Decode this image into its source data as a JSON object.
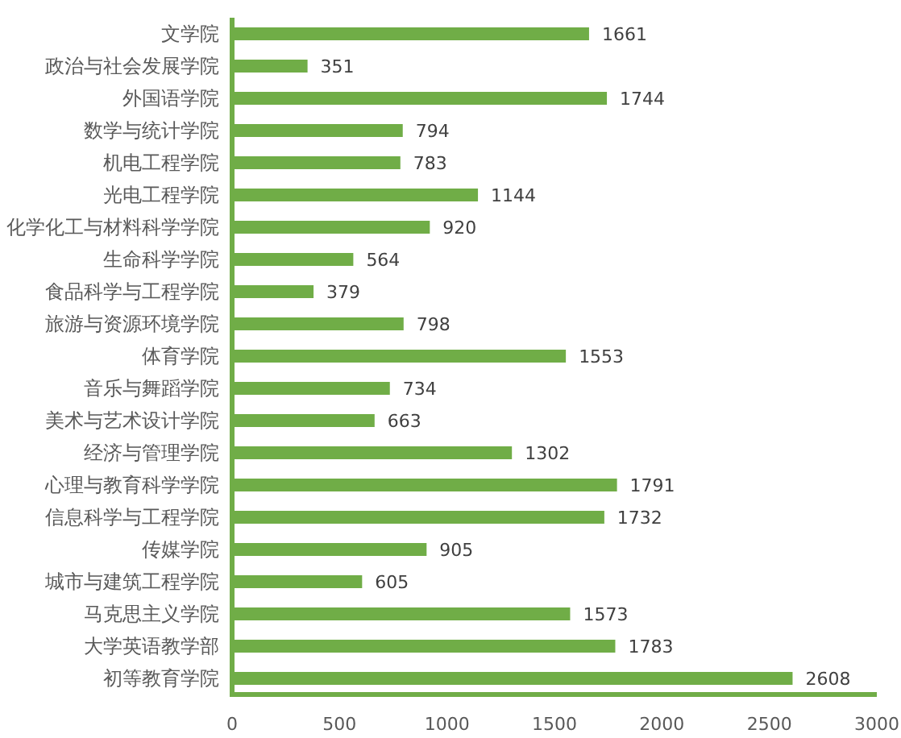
{
  "chart_data": {
    "type": "bar",
    "orientation": "horizontal",
    "categories": [
      "文学院",
      "政治与社会发展学院",
      "外国语学院",
      "数学与统计学院",
      "机电工程学院",
      "光电工程学院",
      "化学化工与材料科学学院",
      "生命科学学院",
      "食品科学与工程学院",
      "旅游与资源环境学院",
      "体育学院",
      "音乐与舞蹈学院",
      "美术与艺术设计学院",
      "经济与管理学院",
      "心理与教育科学学院",
      "信息科学与工程学院",
      "传媒学院",
      "城市与建筑工程学院",
      "马克思主义学院",
      "大学英语教学部",
      "初等教育学院"
    ],
    "values": [
      1661,
      351,
      1744,
      794,
      783,
      1144,
      920,
      564,
      379,
      798,
      1553,
      734,
      663,
      1302,
      1791,
      1732,
      905,
      605,
      1573,
      1783,
      2608
    ],
    "color": "#70ad47",
    "xlim": [
      0,
      3000
    ],
    "xticks": [
      0,
      500,
      1000,
      1500,
      2000,
      2500,
      3000
    ],
    "data_labels": true
  }
}
